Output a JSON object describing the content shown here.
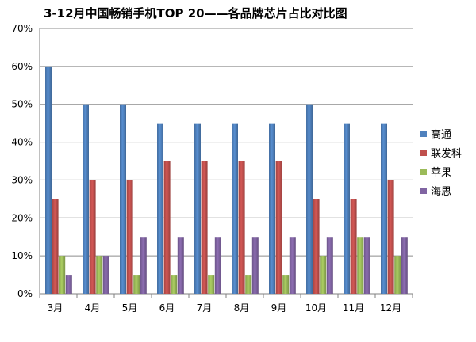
{
  "chart_data": {
    "type": "bar",
    "title": "3-12月中国畅销手机TOP 20——各品牌芯片占比对比图",
    "categories": [
      "3月",
      "4月",
      "5月",
      "6月",
      "7月",
      "8月",
      "9月",
      "10月",
      "11月",
      "12月"
    ],
    "series": [
      {
        "name": "高通",
        "values": [
          60,
          50,
          50,
          45,
          45,
          45,
          45,
          50,
          45,
          45
        ],
        "color": "#4f81bd"
      },
      {
        "name": "联发科",
        "values": [
          25,
          30,
          30,
          35,
          35,
          35,
          35,
          25,
          25,
          30
        ],
        "color": "#c0504d"
      },
      {
        "name": "苹果",
        "values": [
          10,
          10,
          5,
          5,
          5,
          5,
          5,
          10,
          15,
          10
        ],
        "color": "#9bbb59"
      },
      {
        "name": "海思",
        "values": [
          5,
          10,
          15,
          15,
          15,
          15,
          15,
          15,
          15,
          15
        ],
        "color": "#8064a2"
      }
    ],
    "ylim": [
      0,
      70
    ],
    "yticks": [
      "0%",
      "10%",
      "20%",
      "30%",
      "40%",
      "50%",
      "60%",
      "70%"
    ],
    "grid": true,
    "legend": "right"
  }
}
